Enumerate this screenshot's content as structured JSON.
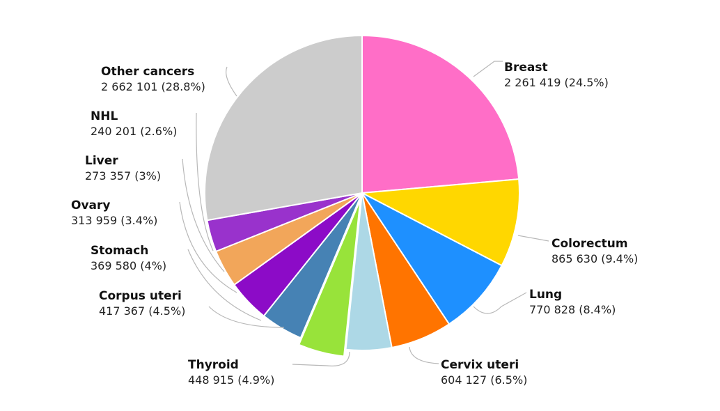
{
  "chart_data": {
    "type": "pie",
    "title": "",
    "start_angle_deg": 0,
    "direction": "clockwise",
    "slices": [
      {
        "name": "Breast",
        "value": 2261419,
        "value_text": "2 261 419 (24.5%)",
        "percent": 24.5,
        "color": "#ff6ec7"
      },
      {
        "name": "Colorectum",
        "value": 865630,
        "value_text": "865 630 (9.4%)",
        "percent": 9.4,
        "color": "#ffd700"
      },
      {
        "name": "Lung",
        "value": 770828,
        "value_text": "770 828 (8.4%)",
        "percent": 8.4,
        "color": "#1e90ff"
      },
      {
        "name": "Cervix uteri",
        "value": 604127,
        "value_text": "604 127 (6.5%)",
        "percent": 6.5,
        "color": "#ff7400"
      },
      {
        "name": "Thyroid",
        "value": 448915,
        "value_text": "448 915 (4.9%)",
        "percent": 4.9,
        "color": "#add8e6"
      },
      {
        "name": "",
        "value": 453000,
        "value_text": "",
        "percent": 4.9,
        "color": "#98e33a"
      },
      {
        "name": "",
        "value": 417367,
        "value_text": "",
        "percent": 4.5,
        "color": "#4682b4"
      },
      {
        "name": "Corpus uteri",
        "value": 417367,
        "value_text": "417 367 (4.5%)",
        "percent": 4.5,
        "color": "#8c0bc7"
      },
      {
        "name": "Stomach",
        "value": 369580,
        "value_text": "369 580 (4%)",
        "percent": 4.0,
        "color": "#f2a65a"
      },
      {
        "name": "Ovary",
        "value": 313959,
        "value_text": "313 959 (3.4%)",
        "percent": 3.4,
        "color": "#9932cc"
      },
      {
        "name": "Other cancers",
        "value": 2662101,
        "value_text": "2 662 101 (28.8%)",
        "percent": 28.8,
        "color": "#cccccc"
      }
    ],
    "labels": [
      {
        "key": "breast",
        "name": "Breast",
        "value_text": "2 261 419 (24.5%)"
      },
      {
        "key": "colorectum",
        "name": "Colorectum",
        "value_text": "865 630 (9.4%)"
      },
      {
        "key": "lung",
        "name": "Lung",
        "value_text": "770 828 (8.4%)"
      },
      {
        "key": "cervix",
        "name": "Cervix uteri",
        "value_text": "604 127 (6.5%)"
      },
      {
        "key": "thyroid",
        "name": "Thyroid",
        "value_text": "448 915 (4.9%)"
      },
      {
        "key": "corpus",
        "name": "Corpus uteri",
        "value_text": "417 367 (4.5%)"
      },
      {
        "key": "stomach",
        "name": "Stomach",
        "value_text": "369 580 (4%)"
      },
      {
        "key": "ovary",
        "name": "Ovary",
        "value_text": "313 959 (3.4%)"
      },
      {
        "key": "liver",
        "name": "Liver",
        "value_text": "273 357 (3%)"
      },
      {
        "key": "nhl",
        "name": "NHL",
        "value_text": "240 201 (2.6%)"
      },
      {
        "key": "other",
        "name": "Other cancers",
        "value_text": "2 662 101 (28.8%)"
      }
    ],
    "legend": "none",
    "grid": false
  }
}
